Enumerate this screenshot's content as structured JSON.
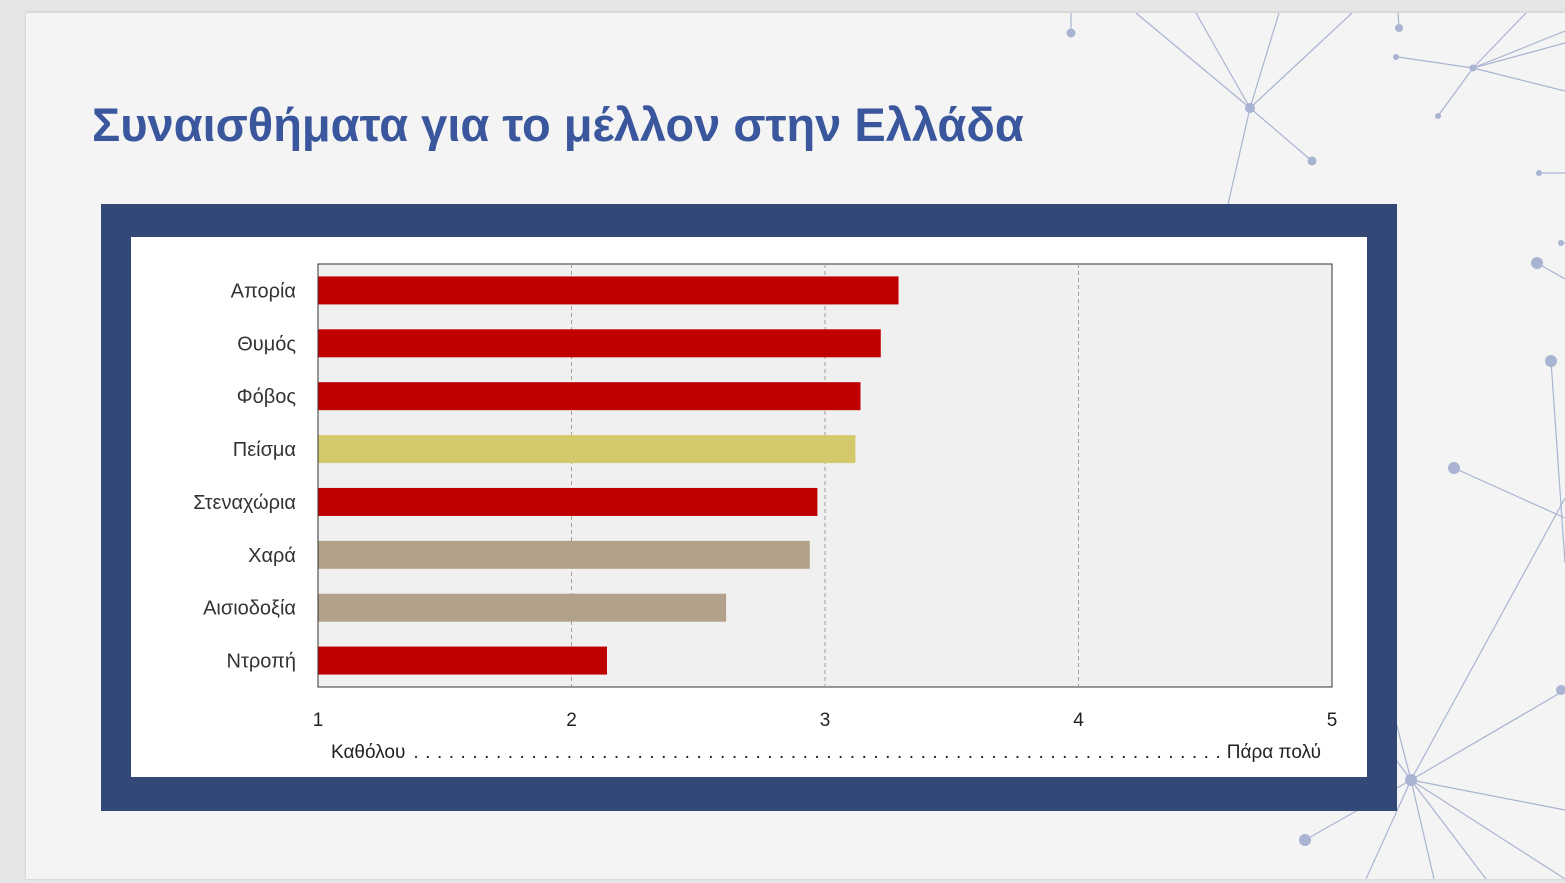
{
  "slide": {
    "title": "Συναισθήματα για το μέλλον στην Ελλάδα"
  },
  "colors": {
    "title": "#3a569c",
    "frame": "#344878",
    "plot_background": "#f0f0f0",
    "network_line": "#a9b4d2",
    "red": "#c00000",
    "yellow": "#d3c96b",
    "tan": "#b1a18a"
  },
  "chart_data": {
    "type": "bar",
    "orientation": "horizontal",
    "categories": [
      "Απορία",
      "Θυμός",
      "Φόβος",
      "Πείσμα",
      "Στεναχώρια",
      "Χαρά",
      "Αισιοδοξία",
      "Ντροπή"
    ],
    "values": [
      3.29,
      3.22,
      3.14,
      3.12,
      2.97,
      2.94,
      2.61,
      2.14
    ],
    "bar_colors": [
      "#c00000",
      "#c00000",
      "#c00000",
      "#d3c96b",
      "#c00000",
      "#b1a18a",
      "#b1a18a",
      "#c00000"
    ],
    "xlim": [
      1,
      5
    ],
    "x_ticks": [
      "1",
      "2",
      "3",
      "4",
      "5"
    ],
    "gridlines": "vertical dashed",
    "scale_low_label": "Καθόλου",
    "scale_high_label": "Πάρα πολύ",
    "legend": "none"
  }
}
